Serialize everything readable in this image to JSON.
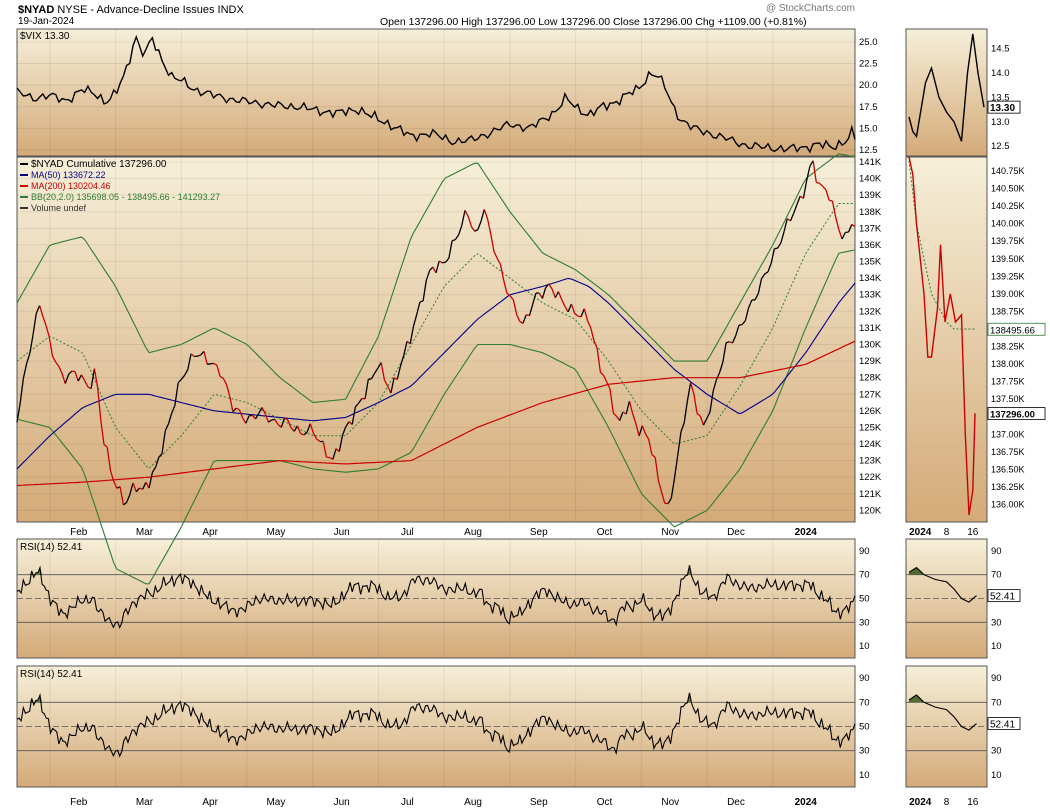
{
  "header": {
    "symbol": "$NYAD",
    "description": "NYSE - Advance-Decline Issues",
    "exchange": "INDX",
    "date": "19-Jan-2024",
    "ohlc_text": "Open 137296.00  High 137296.00  Low 137296.00  Close 137296.00  Chg +1109.00 (+0.81%)",
    "watermark": "@ StockCharts.com"
  },
  "colors": {
    "panel_top": "#f6efd9",
    "panel_bottom": "#d4aa78",
    "price_up": "#000000",
    "price_down": "#cc0000",
    "ma50": "#00008b",
    "ma200": "#cc0000",
    "bb": "#2e7d32",
    "rsi_fill": "#556b2f"
  },
  "chart_data": [
    {
      "type": "line",
      "panel": "vix",
      "legend": "$VIX 13.30",
      "y_ticks": [
        12.5,
        15.0,
        17.5,
        20.0,
        22.5,
        25.0
      ],
      "ylim": [
        11.8,
        26.5
      ],
      "last_label": "13.30",
      "x_labels": [
        "Feb",
        "Mar",
        "Apr",
        "May",
        "Jun",
        "Jul",
        "Aug",
        "Sep",
        "Oct",
        "Nov",
        "Dec",
        "2024"
      ],
      "x_label_months": [
        1,
        2,
        3,
        4,
        5,
        6,
        7,
        8,
        9,
        10,
        11,
        12
      ],
      "anchors": [
        [
          0,
          19.2
        ],
        [
          0.25,
          18.5
        ],
        [
          0.5,
          18.8
        ],
        [
          0.75,
          18.2
        ],
        [
          1,
          19.5
        ],
        [
          1.2,
          19.0
        ],
        [
          1.35,
          18.0
        ],
        [
          1.5,
          19.0
        ],
        [
          1.65,
          21.5
        ],
        [
          1.75,
          24.0
        ],
        [
          1.8,
          26.0
        ],
        [
          1.85,
          24.5
        ],
        [
          1.95,
          23.5
        ],
        [
          2.05,
          25.5
        ],
        [
          2.2,
          23.0
        ],
        [
          2.35,
          21.0
        ],
        [
          2.5,
          20.5
        ],
        [
          2.7,
          19.5
        ],
        [
          3.0,
          18.8
        ],
        [
          3.3,
          18.3
        ],
        [
          3.6,
          18.0
        ],
        [
          4.0,
          17.6
        ],
        [
          4.3,
          17.5
        ],
        [
          4.6,
          17.0
        ],
        [
          4.9,
          16.8
        ],
        [
          5.2,
          17.2
        ],
        [
          5.5,
          16.0
        ],
        [
          5.8,
          15.0
        ],
        [
          6.0,
          14.0
        ],
        [
          6.3,
          14.5
        ],
        [
          6.6,
          13.5
        ],
        [
          6.9,
          13.6
        ],
        [
          7.2,
          14.5
        ],
        [
          7.5,
          15.5
        ],
        [
          7.8,
          15.0
        ],
        [
          8.0,
          16.0
        ],
        [
          8.2,
          17.0
        ],
        [
          8.35,
          18.5
        ],
        [
          8.5,
          17.5
        ],
        [
          8.7,
          16.5
        ],
        [
          8.9,
          17.5
        ],
        [
          9.1,
          18.0
        ],
        [
          9.3,
          19.0
        ],
        [
          9.45,
          19.5
        ],
        [
          9.55,
          20.5
        ],
        [
          9.65,
          21.5
        ],
        [
          9.75,
          21.0
        ],
        [
          9.85,
          20.0
        ],
        [
          9.95,
          18.0
        ],
        [
          10.1,
          16.0
        ],
        [
          10.3,
          15.0
        ],
        [
          10.5,
          14.5
        ],
        [
          10.8,
          13.8
        ],
        [
          11.1,
          13.0
        ],
        [
          11.4,
          12.8
        ],
        [
          11.7,
          12.6
        ],
        [
          12.0,
          12.8
        ],
        [
          12.2,
          13.2
        ],
        [
          12.4,
          12.8
        ],
        [
          12.6,
          13.5
        ],
        [
          12.7,
          14.5
        ],
        [
          12.8,
          13.3
        ]
      ],
      "inset_y_ticks": [
        12.5,
        13.0,
        13.5,
        14.0,
        14.5
      ],
      "inset_ylim": [
        12.3,
        14.9
      ],
      "inset_anchors": [
        [
          0,
          13.1
        ],
        [
          0.05,
          12.8
        ],
        [
          0.1,
          12.7
        ],
        [
          0.22,
          13.8
        ],
        [
          0.3,
          14.1
        ],
        [
          0.4,
          13.5
        ],
        [
          0.5,
          13.2
        ],
        [
          0.6,
          13.0
        ],
        [
          0.7,
          12.6
        ],
        [
          0.78,
          14.0
        ],
        [
          0.85,
          14.8
        ],
        [
          0.92,
          14.0
        ],
        [
          1.0,
          13.3
        ]
      ]
    },
    {
      "type": "line",
      "panel": "price",
      "legend": {
        "price": "$NYAD Cumulative 137296.00",
        "ma50": "MA(50) 133672.22",
        "ma200": "MA(200) 130204.46",
        "bb": "BB(20,2.0) 135698.05 - 138495.66 - 141293.27",
        "volume": "Volume undef"
      },
      "y_ticks": [
        120,
        121,
        122,
        123,
        124,
        125,
        126,
        127,
        128,
        129,
        130,
        131,
        132,
        133,
        134,
        135,
        136,
        137,
        138,
        139,
        140,
        141
      ],
      "y_tick_suffix": "K",
      "ylim": [
        119.3,
        141.3
      ],
      "price_anchors": [
        [
          0,
          125.5
        ],
        [
          0.15,
          129.0
        ],
        [
          0.35,
          132.5
        ],
        [
          0.5,
          130.0
        ],
        [
          0.7,
          128.0
        ],
        [
          0.9,
          128.2
        ],
        [
          1.1,
          127.5
        ],
        [
          1.2,
          128.5
        ],
        [
          1.3,
          124.5
        ],
        [
          1.45,
          122.0
        ],
        [
          1.65,
          120.5
        ],
        [
          1.8,
          121.5
        ],
        [
          1.9,
          121.0
        ],
        [
          2.1,
          122.5
        ],
        [
          2.3,
          125.0
        ],
        [
          2.5,
          128.0
        ],
        [
          2.7,
          129.5
        ],
        [
          2.9,
          129.0
        ],
        [
          3.1,
          128.5
        ],
        [
          3.3,
          126.0
        ],
        [
          3.5,
          125.5
        ],
        [
          3.7,
          126.0
        ],
        [
          3.9,
          125.2
        ],
        [
          4.1,
          125.5
        ],
        [
          4.3,
          124.5
        ],
        [
          4.5,
          125.0
        ],
        [
          4.8,
          122.8
        ],
        [
          5.0,
          125.0
        ],
        [
          5.3,
          127.0
        ],
        [
          5.5,
          129.0
        ],
        [
          5.7,
          127.0
        ],
        [
          5.9,
          129.5
        ],
        [
          6.1,
          132.0
        ],
        [
          6.3,
          134.5
        ],
        [
          6.5,
          135.0
        ],
        [
          6.7,
          136.5
        ],
        [
          6.85,
          138.0
        ],
        [
          7.0,
          136.5
        ],
        [
          7.1,
          138.5
        ],
        [
          7.2,
          136.5
        ],
        [
          7.4,
          134.0
        ],
        [
          7.6,
          132.0
        ],
        [
          7.7,
          131.0
        ],
        [
          7.9,
          133.0
        ],
        [
          8.1,
          133.5
        ],
        [
          8.3,
          132.5
        ],
        [
          8.5,
          132.0
        ],
        [
          8.7,
          131.5
        ],
        [
          8.85,
          129.0
        ],
        [
          9.0,
          127.5
        ],
        [
          9.15,
          125.0
        ],
        [
          9.3,
          126.5
        ],
        [
          9.45,
          125.0
        ],
        [
          9.6,
          124.5
        ],
        [
          9.75,
          122.0
        ],
        [
          9.9,
          120.0
        ],
        [
          10.0,
          122.0
        ],
        [
          10.15,
          125.5
        ],
        [
          10.25,
          127.5
        ],
        [
          10.45,
          125.0
        ],
        [
          10.6,
          127.0
        ],
        [
          10.8,
          130.0
        ],
        [
          11.0,
          131.0
        ],
        [
          11.2,
          132.5
        ],
        [
          11.4,
          134.5
        ],
        [
          11.6,
          136.0
        ],
        [
          11.8,
          138.0
        ],
        [
          11.95,
          139.0
        ],
        [
          12.1,
          141.0
        ],
        [
          12.2,
          139.5
        ],
        [
          12.35,
          139.3
        ],
        [
          12.5,
          137.0
        ],
        [
          12.6,
          136.2
        ],
        [
          12.7,
          137.3
        ]
      ],
      "ma50_anchors": [
        [
          0,
          122.5
        ],
        [
          0.5,
          124.5
        ],
        [
          1.0,
          126.2
        ],
        [
          1.5,
          127.0
        ],
        [
          2.0,
          127.0
        ],
        [
          2.5,
          126.5
        ],
        [
          3.0,
          126.0
        ],
        [
          3.5,
          125.8
        ],
        [
          4.0,
          125.6
        ],
        [
          4.5,
          125.4
        ],
        [
          5.0,
          125.6
        ],
        [
          5.5,
          126.5
        ],
        [
          6.0,
          127.5
        ],
        [
          6.5,
          129.5
        ],
        [
          7.0,
          131.5
        ],
        [
          7.5,
          133.0
        ],
        [
          8.0,
          133.5
        ],
        [
          8.4,
          134.0
        ],
        [
          8.7,
          133.5
        ],
        [
          9.0,
          132.5
        ],
        [
          9.5,
          130.5
        ],
        [
          10.0,
          128.5
        ],
        [
          10.5,
          127.0
        ],
        [
          11.0,
          125.8
        ],
        [
          11.5,
          127.0
        ],
        [
          12.0,
          129.5
        ],
        [
          12.5,
          132.5
        ],
        [
          12.75,
          133.7
        ]
      ],
      "ma200_anchors": [
        [
          0,
          121.5
        ],
        [
          1.0,
          121.7
        ],
        [
          2.0,
          122.0
        ],
        [
          3.0,
          122.5
        ],
        [
          4.0,
          123.0
        ],
        [
          5.0,
          122.8
        ],
        [
          6.0,
          123.0
        ],
        [
          7.0,
          125.0
        ],
        [
          8.0,
          126.5
        ],
        [
          9.0,
          127.6
        ],
        [
          10.0,
          128.0
        ],
        [
          11.0,
          128.0
        ],
        [
          12.0,
          128.8
        ],
        [
          12.75,
          130.2
        ]
      ],
      "bb_mid_anchors": [
        [
          0,
          129.0
        ],
        [
          0.5,
          130.5
        ],
        [
          1.0,
          129.5
        ],
        [
          1.5,
          125.0
        ],
        [
          2.0,
          122.5
        ],
        [
          2.5,
          124.5
        ],
        [
          3.0,
          127.0
        ],
        [
          3.5,
          126.5
        ],
        [
          4.0,
          125.5
        ],
        [
          4.5,
          124.5
        ],
        [
          5.0,
          124.5
        ],
        [
          5.5,
          126.5
        ],
        [
          6.0,
          130.0
        ],
        [
          6.5,
          133.5
        ],
        [
          7.0,
          135.5
        ],
        [
          7.5,
          134.0
        ],
        [
          8.0,
          132.5
        ],
        [
          8.5,
          131.5
        ],
        [
          9.0,
          129.0
        ],
        [
          9.5,
          126.0
        ],
        [
          10.0,
          124.0
        ],
        [
          10.5,
          124.5
        ],
        [
          11.0,
          127.5
        ],
        [
          11.5,
          131.0
        ],
        [
          12.0,
          135.5
        ],
        [
          12.5,
          138.5
        ],
        [
          12.75,
          138.5
        ]
      ],
      "bb_width_anchors": [
        [
          0,
          3.5
        ],
        [
          0.5,
          5.5
        ],
        [
          1.0,
          7.0
        ],
        [
          1.5,
          8.5
        ],
        [
          2.0,
          7.0
        ],
        [
          2.5,
          5.5
        ],
        [
          3.0,
          4.0
        ],
        [
          3.5,
          3.5
        ],
        [
          4.0,
          2.5
        ],
        [
          4.5,
          2.0
        ],
        [
          5.0,
          2.2
        ],
        [
          5.5,
          4.0
        ],
        [
          6.0,
          6.5
        ],
        [
          6.5,
          6.5
        ],
        [
          7.0,
          5.5
        ],
        [
          7.5,
          4.0
        ],
        [
          8.0,
          3.0
        ],
        [
          8.5,
          3.0
        ],
        [
          9.0,
          4.0
        ],
        [
          9.5,
          5.0
        ],
        [
          10.0,
          5.0
        ],
        [
          10.5,
          4.5
        ],
        [
          11.0,
          5.0
        ],
        [
          11.5,
          5.0
        ],
        [
          12.0,
          4.5
        ],
        [
          12.5,
          3.0
        ],
        [
          12.75,
          2.8
        ]
      ],
      "inset_y_ticks": [
        136.0,
        136.25,
        136.5,
        136.75,
        137.0,
        137.25,
        137.5,
        137.75,
        138.0,
        138.25,
        138.5,
        138.75,
        139.0,
        139.25,
        139.5,
        139.75,
        140.0,
        140.25,
        140.5,
        140.75
      ],
      "inset_ylim": [
        135.75,
        140.95
      ],
      "inset_price_anchors": [
        [
          0,
          140.95
        ],
        [
          0.05,
          140.7
        ],
        [
          0.1,
          140.0
        ],
        [
          0.2,
          139.0
        ],
        [
          0.25,
          138.1
        ],
        [
          0.3,
          138.1
        ],
        [
          0.38,
          138.8
        ],
        [
          0.42,
          139.7
        ],
        [
          0.48,
          138.6
        ],
        [
          0.55,
          139.0
        ],
        [
          0.62,
          138.6
        ],
        [
          0.7,
          138.7
        ],
        [
          0.75,
          137.0
        ],
        [
          0.8,
          135.85
        ],
        [
          0.85,
          136.2
        ],
        [
          0.88,
          137.3
        ]
      ],
      "inset_bb_anchors": [
        [
          0,
          140.9
        ],
        [
          0.1,
          140.0
        ],
        [
          0.3,
          139.0
        ],
        [
          0.5,
          138.6
        ],
        [
          0.6,
          138.5
        ],
        [
          0.75,
          138.5
        ],
        [
          0.88,
          138.5
        ]
      ],
      "inset_last_labels": [
        "138495.66",
        "137296.00"
      ],
      "inset_x_labels": [
        "2024",
        "8",
        "16"
      ]
    },
    {
      "type": "line",
      "panel": "rsi1",
      "legend": "RSI(14) 52.41",
      "y_ticks": [
        10,
        30,
        50,
        70,
        90
      ],
      "ylim": [
        0,
        100
      ],
      "last_label": "52.41"
    },
    {
      "type": "line",
      "panel": "rsi2",
      "legend": "RSI(14) 52.41",
      "y_ticks": [
        10,
        30,
        50,
        70,
        90
      ],
      "ylim": [
        0,
        100
      ],
      "last_label": "52.41"
    }
  ]
}
